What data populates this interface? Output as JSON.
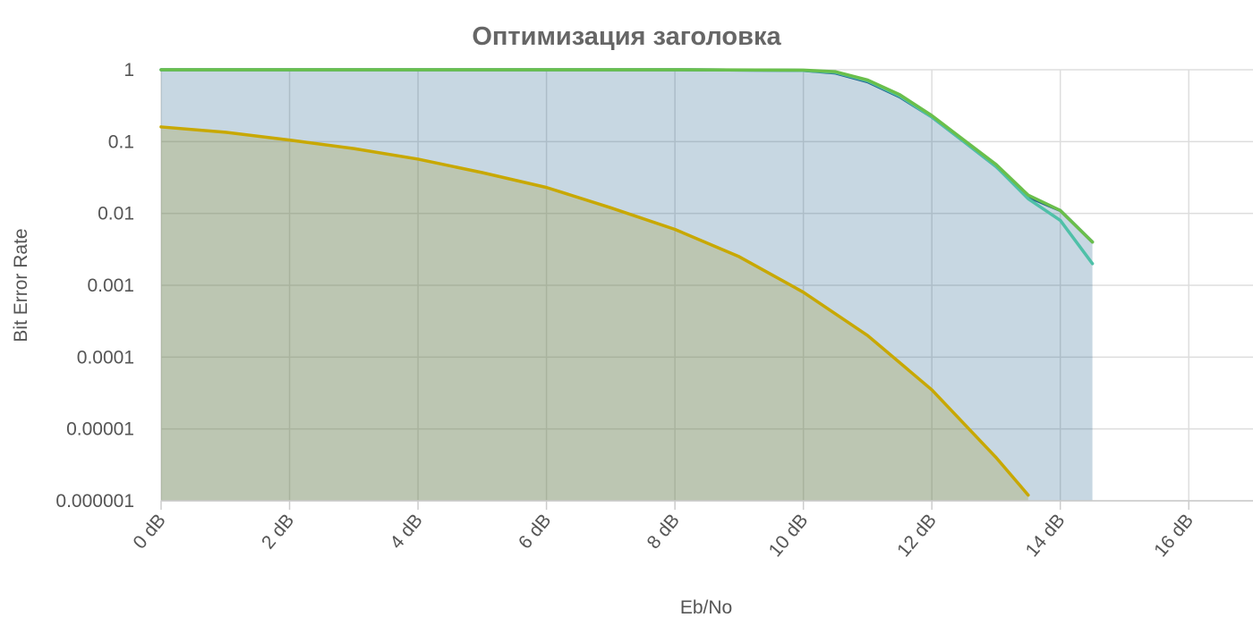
{
  "chart_data": {
    "type": "area",
    "title": "Оптимизация заголовка",
    "xlabel": "Eb/No",
    "ylabel": "Bit Error Rate",
    "x_scale": "linear",
    "y_scale": "log",
    "xlim": [
      0,
      17
    ],
    "ylim": [
      1e-06,
      1
    ],
    "x_ticks": [
      0,
      2,
      4,
      6,
      8,
      10,
      12,
      14,
      16
    ],
    "x_tick_labels": [
      "0 dB",
      "2 dB",
      "4 dB",
      "6 dB",
      "8 dB",
      "10 dB",
      "12 dB",
      "14 dB",
      "16 dB"
    ],
    "y_ticks": [
      1,
      0.1,
      0.01,
      0.001,
      0.0001,
      1e-05,
      1e-06
    ],
    "y_tick_labels": [
      "1",
      "0.1",
      "0.01",
      "0.001",
      "0.0001",
      "0.00001",
      "0.000001"
    ],
    "grid": true,
    "legend": "none",
    "series": [
      {
        "color": "#c8a800",
        "fill": true,
        "x": [
          0,
          1,
          2,
          3,
          4,
          5,
          6,
          7,
          8,
          9,
          10,
          11,
          12,
          13,
          13.5
        ],
        "values": [
          0.16,
          0.135,
          0.105,
          0.08,
          0.057,
          0.037,
          0.023,
          0.012,
          0.006,
          0.0025,
          0.0008,
          0.0002,
          3.5e-05,
          4e-06,
          1.2e-06
        ]
      },
      {
        "color": "#1f5f8b",
        "fill": true,
        "x": [
          0,
          2,
          4,
          6,
          8,
          10,
          10.5,
          11,
          11.5,
          12,
          12.5,
          13,
          13.5,
          14,
          14.5
        ],
        "values": [
          1,
          1,
          1,
          1,
          1,
          0.98,
          0.9,
          0.68,
          0.42,
          0.22,
          0.1,
          0.045,
          0.017,
          0.011,
          0.004
        ]
      },
      {
        "color": "#4fc0a8",
        "fill": false,
        "x": [
          0,
          2,
          4,
          6,
          8,
          10,
          10.5,
          11,
          11.5,
          12,
          12.5,
          13,
          13.5,
          14,
          14.5
        ],
        "values": [
          1,
          1,
          1,
          1,
          1,
          0.98,
          0.92,
          0.7,
          0.43,
          0.22,
          0.1,
          0.045,
          0.016,
          0.008,
          0.002
        ]
      },
      {
        "color": "#6abf4b",
        "fill": false,
        "x": [
          0,
          2,
          4,
          6,
          8,
          10,
          10.5,
          11,
          11.5,
          12,
          12.5,
          13,
          13.5,
          14,
          14.5
        ],
        "values": [
          1,
          1,
          1,
          1,
          1,
          0.99,
          0.94,
          0.72,
          0.45,
          0.23,
          0.105,
          0.048,
          0.018,
          0.011,
          0.004
        ]
      }
    ]
  }
}
